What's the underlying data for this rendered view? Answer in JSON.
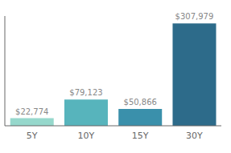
{
  "chart_data": {
    "type": "bar",
    "categories": [
      "5Y",
      "10Y",
      "15Y",
      "30Y"
    ],
    "values": [
      22774,
      79123,
      50866,
      307979
    ],
    "value_labels": [
      "$22,774",
      "$79,123",
      "$50,866",
      "$307,979"
    ],
    "colors": [
      "#96d8cc",
      "#57b4bc",
      "#3a90ab",
      "#2d6b8a"
    ],
    "ylim": [
      0,
      330000
    ],
    "data_labels": true,
    "tick_labels": "x",
    "grid": false
  }
}
